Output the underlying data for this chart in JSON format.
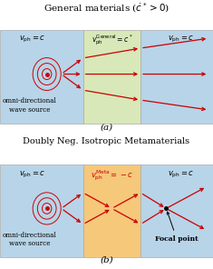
{
  "title_a": "General materials ($\\dot{c}^* > 0$)",
  "title_b": "Doubly Neg. Isotropic Metamaterials",
  "label_a": "(a)",
  "label_b": "(b)",
  "bg_blue": "#b8d4e8",
  "bg_green": "#d8e8b8",
  "bg_orange": "#f5c87a",
  "arrow_color": "#cc0000",
  "circle_color": "#cc0000",
  "text_color_red": "#cc0000",
  "vph_left": "$v_{\\mathrm{ph}} = c$",
  "vph_right": "$v_{\\mathrm{ph}} = c$",
  "vph_general": "$v_{\\mathrm{ph}}^{\\mathrm{General}} = c^*$",
  "vph_meta": "$v_{\\mathrm{ph}}^{\\mathrm{Meta}} = -c$",
  "omni_text": "omni-directional\nwave source",
  "focal_text": "Focal point",
  "figsize": [
    2.35,
    2.96
  ],
  "dpi": 100
}
